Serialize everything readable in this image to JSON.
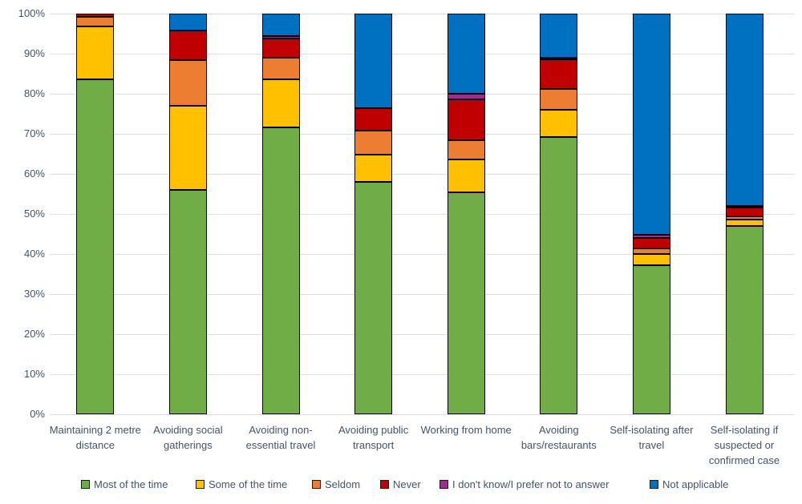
{
  "chart_data": {
    "type": "bar",
    "subtype": "stacked-100-percent",
    "title": "",
    "xlabel": "",
    "ylabel": "",
    "grid": true,
    "legend_position": "bottom",
    "categories": [
      "Maintaining 2 metre distance",
      "Avoiding social gatherings",
      "Avoiding non-essential travel",
      "Avoiding public transport",
      "Working from home",
      "Avoiding bars/restaurants",
      "Self-isolating after travel",
      "Self-isolating if suspected or confirmed case"
    ],
    "series": [
      {
        "name": "Most of the time",
        "color": "#70AD47",
        "values": [
          83.7,
          56.0,
          71.7,
          58.0,
          55.4,
          69.3,
          37.2,
          47.0
        ]
      },
      {
        "name": "Some of the time",
        "color": "#FFC000",
        "values": [
          13.2,
          21.0,
          12.0,
          6.9,
          8.3,
          6.8,
          2.8,
          1.7
        ]
      },
      {
        "name": "Seldom",
        "color": "#ED7D31",
        "values": [
          2.4,
          11.5,
          5.4,
          6.0,
          4.8,
          5.2,
          1.5,
          0.8
        ]
      },
      {
        "name": "Never",
        "color": "#C00000",
        "values": [
          0.7,
          7.3,
          4.8,
          5.6,
          10.1,
          7.3,
          2.5,
          2.2
        ]
      },
      {
        "name": "I don't know/I prefer not to answer",
        "color": "#A02B93",
        "values": [
          0,
          0,
          0.6,
          0,
          1.5,
          0.4,
          0.8,
          0.3
        ]
      },
      {
        "name": "Not applicable",
        "color": "#0070C0",
        "values": [
          0,
          4.2,
          5.5,
          23.5,
          19.9,
          11.0,
          55.2,
          48.0
        ]
      }
    ],
    "y_axis": {
      "min": 0,
      "max": 100,
      "tick_labels": [
        "0%",
        "10%",
        "20%",
        "30%",
        "40%",
        "50%",
        "60%",
        "70%",
        "80%",
        "90%",
        "100%"
      ]
    },
    "colors": {
      "gridline": "#d8dee6",
      "text": "#44546A",
      "segment_border": "#000000"
    }
  }
}
